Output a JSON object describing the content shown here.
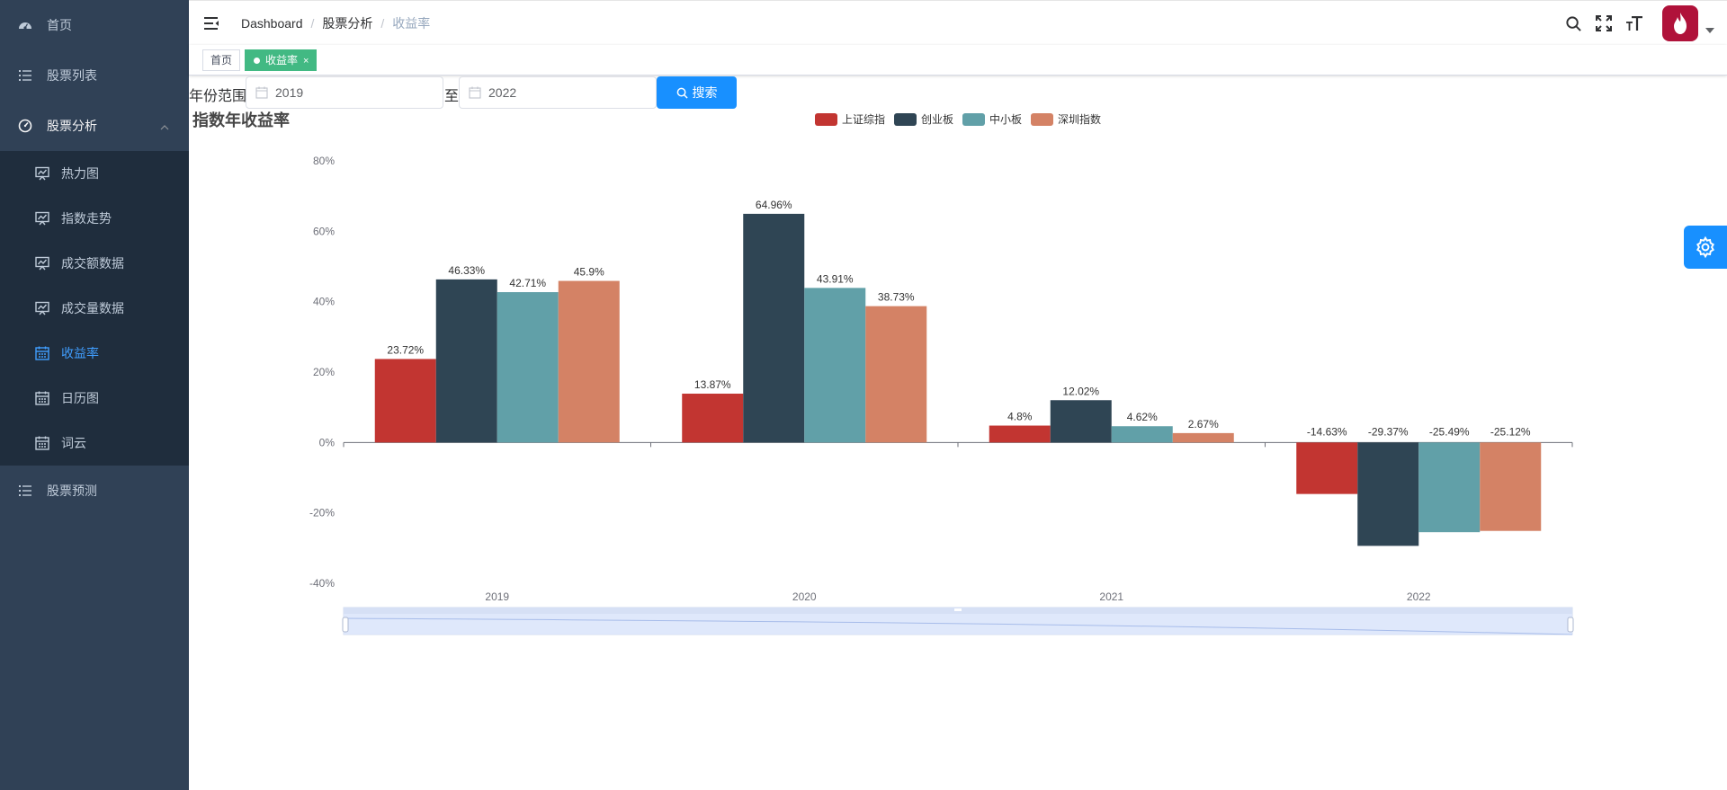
{
  "sidebar": {
    "items": [
      {
        "label": "首页",
        "icon": "dashboard-icon"
      },
      {
        "label": "股票列表",
        "icon": "list-icon"
      },
      {
        "label": "股票分析",
        "icon": "gauge-icon"
      },
      {
        "label": "股票预测",
        "icon": "list-icon"
      }
    ],
    "sub_items": [
      {
        "label": "热力图",
        "icon": "chart-board-icon"
      },
      {
        "label": "指数走势",
        "icon": "chart-board-icon"
      },
      {
        "label": "成交额数据",
        "icon": "chart-board-icon"
      },
      {
        "label": "成交量数据",
        "icon": "chart-board-icon"
      },
      {
        "label": "收益率",
        "icon": "calendar-icon"
      },
      {
        "label": "日历图",
        "icon": "calendar-icon"
      },
      {
        "label": "词云",
        "icon": "calendar-icon"
      }
    ],
    "active_sub": "收益率",
    "colors": {
      "bg": "#304156",
      "sub_bg": "#1f2d3d",
      "text": "#bfcbd9",
      "active": "#409eff"
    }
  },
  "navbar": {
    "breadcrumb": [
      "Dashboard",
      "股票分析",
      "收益率"
    ]
  },
  "tags": {
    "home": "首页",
    "active": "收益率",
    "close": "×"
  },
  "filter": {
    "year_label": "年份范围",
    "start_year": "2019",
    "to_label": "至",
    "end_year": "2022",
    "search_label": "搜索"
  },
  "chart_data": {
    "type": "bar",
    "title": "指数年收益率",
    "categories": [
      "2019",
      "2020",
      "2021",
      "2022"
    ],
    "series": [
      {
        "name": "上证综指",
        "color": "#c23531",
        "values": [
          23.72,
          13.87,
          4.8,
          -14.63
        ]
      },
      {
        "name": "创业板",
        "color": "#2f4554",
        "values": [
          46.33,
          64.96,
          12.02,
          -29.37
        ]
      },
      {
        "name": "中小板",
        "color": "#61a0a8",
        "values": [
          42.71,
          43.91,
          4.62,
          -25.49
        ]
      },
      {
        "name": "深圳指数",
        "color": "#d48265",
        "values": [
          45.9,
          38.73,
          2.67,
          -25.12
        ]
      }
    ],
    "ylim": [
      -40,
      80
    ],
    "yticks": [
      -40,
      -20,
      0,
      20,
      40,
      60,
      80
    ],
    "unit": "%",
    "legend_position": "top-center",
    "grid": false,
    "datazoom_slider": true
  }
}
